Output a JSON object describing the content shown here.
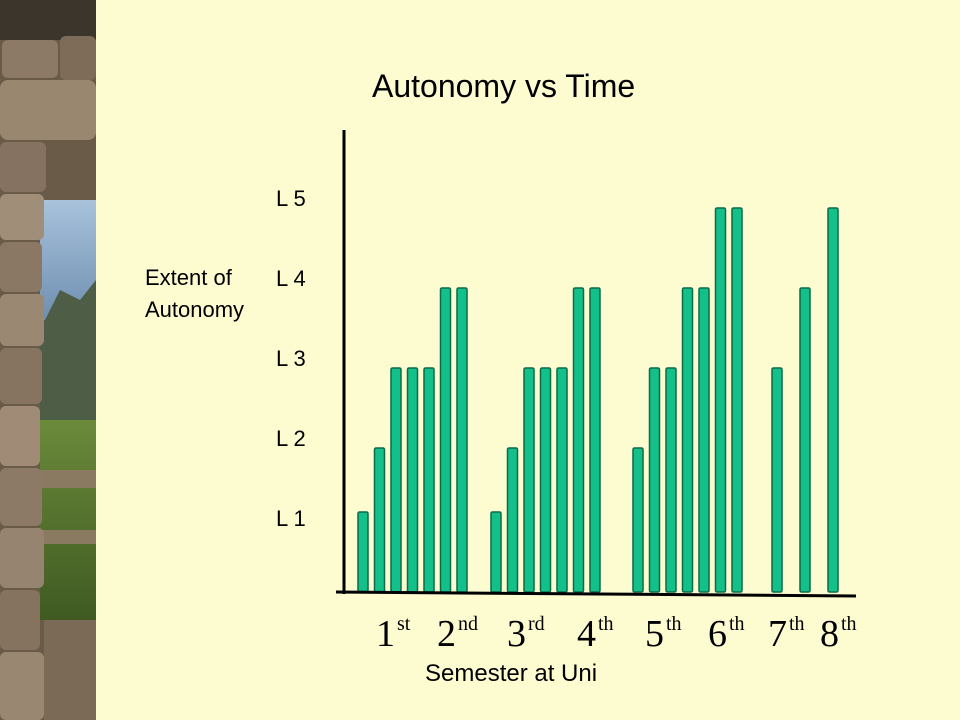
{
  "chart_data": {
    "type": "bar",
    "title": "Autonomy vs Time",
    "ylabel": "Extent of Autonomy",
    "xlabel": "Semester at Uni",
    "y_ticks": [
      "L 1",
      "L 2",
      "L 3",
      "L 4",
      "L 5"
    ],
    "ylim": [
      0,
      5.8
    ],
    "grid": false,
    "x_ticks": [
      {
        "num": "1",
        "sup": "st"
      },
      {
        "num": "2",
        "sup": "nd"
      },
      {
        "num": "3",
        "sup": "rd"
      },
      {
        "num": "4",
        "sup": "th"
      },
      {
        "num": "5",
        "sup": "th"
      },
      {
        "num": "6",
        "sup": "th"
      },
      {
        "num": "7",
        "sup": "th"
      },
      {
        "num": "8",
        "sup": "th"
      }
    ],
    "groups": [
      {
        "values": [
          1.0,
          1.8,
          2.8,
          2.8,
          2.8,
          3.8,
          3.8
        ]
      },
      {
        "values": [
          1.0,
          1.8,
          2.8,
          2.8,
          2.8,
          3.8,
          3.8
        ]
      },
      {
        "values": [
          1.8,
          2.8,
          2.8,
          3.8,
          3.8,
          4.8,
          4.8
        ]
      },
      {
        "values": [
          2.8,
          3.8,
          4.8
        ]
      }
    ],
    "bar_color": "#14c08a",
    "bar_edge_color": "#0a6a49"
  }
}
